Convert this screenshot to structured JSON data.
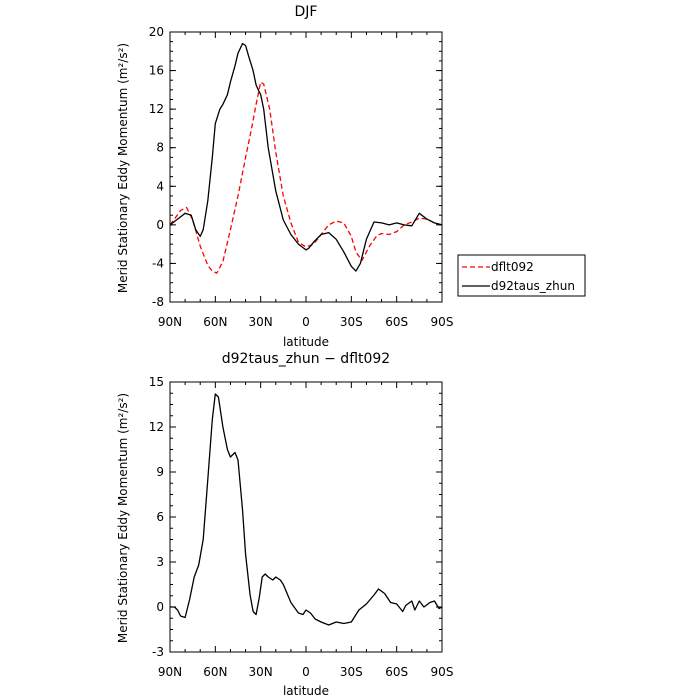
{
  "chart_data": [
    {
      "type": "line",
      "title": "DJF",
      "xlabel": "latitude",
      "ylabel": "Merid Stationary Eddy Momentum (m²/s²)",
      "xlim": [
        90,
        -90
      ],
      "ylim": [
        -8,
        20
      ],
      "x_ticks": [
        90,
        60,
        30,
        0,
        -30,
        -60,
        -90
      ],
      "x_tick_labels": [
        "90N",
        "60N",
        "30N",
        "0",
        "30S",
        "60S",
        "90S"
      ],
      "y_ticks": [
        -8,
        -4,
        0,
        4,
        8,
        12,
        16,
        20
      ],
      "legend": {
        "placement": "right"
      },
      "series": [
        {
          "name": "dflt092",
          "color": "#ff0000",
          "style": "dashed",
          "x": [
            90,
            87,
            83,
            79,
            75,
            70,
            65,
            62,
            59,
            55,
            50,
            45,
            40,
            36,
            33,
            30,
            28,
            24,
            20,
            15,
            10,
            5,
            0,
            -5,
            -10,
            -15,
            -20,
            -25,
            -30,
            -33,
            -37,
            -42,
            -47,
            -50,
            -55,
            -60,
            -65,
            -70,
            -75,
            -80,
            -85,
            -90
          ],
          "y": [
            0,
            0.6,
            1.5,
            1.8,
            0.5,
            -2.2,
            -4.2,
            -4.8,
            -5.0,
            -3.8,
            -0.5,
            3.0,
            7.0,
            10.0,
            12.5,
            14.8,
            14.6,
            12.0,
            7.5,
            3.0,
            0.2,
            -1.8,
            -2.3,
            -2.0,
            -1.0,
            0.0,
            0.4,
            0.2,
            -1.2,
            -2.8,
            -3.7,
            -2.2,
            -1.1,
            -0.9,
            -1.0,
            -0.7,
            0.0,
            0.3,
            0.7,
            0.6,
            0.2,
            0
          ]
        },
        {
          "name": "d92taus_zhun",
          "color": "#000000",
          "style": "solid",
          "x": [
            90,
            85,
            80,
            76,
            73,
            70,
            68,
            65,
            62,
            60,
            57,
            55,
            52,
            50,
            47,
            45,
            42,
            40,
            38,
            35,
            33,
            31,
            30,
            28,
            25,
            20,
            15,
            10,
            5,
            0,
            -2,
            -5,
            -10,
            -15,
            -20,
            -25,
            -30,
            -33,
            -36,
            -40,
            -45,
            -50,
            -55,
            -60,
            -65,
            -70,
            -75,
            -80,
            -85,
            -90
          ],
          "y": [
            0,
            0.6,
            1.2,
            1.0,
            -0.5,
            -1.2,
            -0.5,
            2.5,
            7.0,
            10.5,
            12.0,
            12.5,
            13.5,
            14.8,
            16.5,
            17.8,
            18.8,
            18.6,
            17.5,
            16.0,
            14.5,
            13.8,
            13.5,
            12.0,
            8.0,
            3.5,
            0.5,
            -1.0,
            -2.0,
            -2.6,
            -2.4,
            -1.8,
            -1.0,
            -0.8,
            -1.5,
            -2.8,
            -4.3,
            -4.8,
            -4.0,
            -1.5,
            0.3,
            0.2,
            0.0,
            0.2,
            0.0,
            -0.1,
            1.2,
            0.6,
            0.2,
            0
          ]
        }
      ]
    },
    {
      "type": "line",
      "title": "d92taus_zhun − dflt092",
      "xlabel": "latitude",
      "ylabel": "Merid Stationary Eddy Momentum (m²/s²)",
      "xlim": [
        90,
        -90
      ],
      "ylim": [
        -3,
        15
      ],
      "x_ticks": [
        90,
        60,
        30,
        0,
        -30,
        -60,
        -90
      ],
      "x_tick_labels": [
        "90N",
        "60N",
        "30N",
        "0",
        "30S",
        "60S",
        "90S"
      ],
      "y_ticks": [
        -3,
        0,
        3,
        6,
        9,
        12,
        15
      ],
      "series": [
        {
          "color": "#000000",
          "style": "solid",
          "x": [
            90,
            87,
            85,
            83,
            80,
            77,
            74,
            71,
            68,
            65,
            62,
            60,
            58,
            55,
            52,
            50,
            47,
            45,
            42,
            40,
            37,
            35,
            33,
            31,
            29,
            27,
            25,
            22,
            20,
            17,
            15,
            10,
            5,
            2,
            0,
            -3,
            -6,
            -10,
            -15,
            -20,
            -25,
            -30,
            -35,
            -40,
            -45,
            -48,
            -52,
            -56,
            -60,
            -64,
            -66,
            -70,
            -72,
            -75,
            -78,
            -82,
            -85,
            -88,
            -90
          ],
          "y": [
            0,
            0,
            -0.2,
            -0.6,
            -0.7,
            0.5,
            2.0,
            2.8,
            4.5,
            8.5,
            12.5,
            14.2,
            14.0,
            12.0,
            10.5,
            10.0,
            10.3,
            9.8,
            6.5,
            3.5,
            0.8,
            -0.3,
            -0.5,
            0.6,
            2.0,
            2.2,
            2.0,
            1.8,
            2.0,
            1.8,
            1.5,
            0.3,
            -0.4,
            -0.5,
            -0.2,
            -0.4,
            -0.8,
            -1.0,
            -1.2,
            -1.0,
            -1.1,
            -1.0,
            -0.2,
            0.2,
            0.8,
            1.2,
            0.9,
            0.3,
            0.2,
            -0.3,
            0.1,
            0.4,
            -0.2,
            0.4,
            0.0,
            0.3,
            0.4,
            -0.1,
            0
          ]
        }
      ]
    }
  ]
}
